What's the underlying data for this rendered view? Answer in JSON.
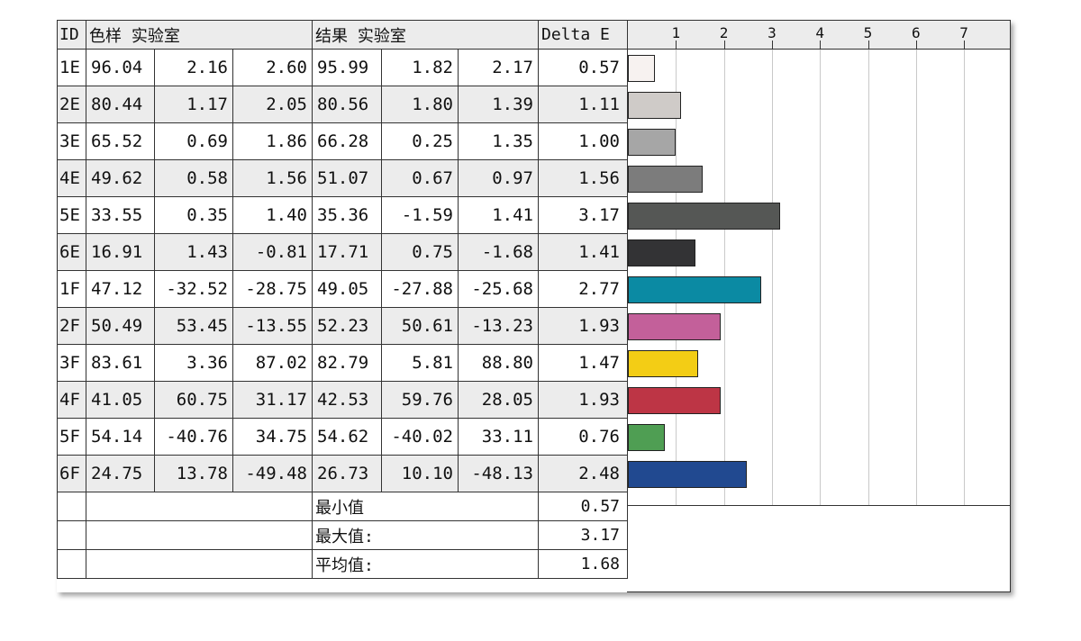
{
  "header": {
    "id": "ID",
    "sample": "色样 实验室",
    "result": "结果 实验室",
    "delta": "Delta E"
  },
  "rows": [
    {
      "id": "1E",
      "s": [
        "96.04",
        "2.16",
        "2.60"
      ],
      "r": [
        "95.99",
        "1.82",
        "2.17"
      ],
      "de": "0.57"
    },
    {
      "id": "2E",
      "s": [
        "80.44",
        "1.17",
        "2.05"
      ],
      "r": [
        "80.56",
        "1.80",
        "1.39"
      ],
      "de": "1.11"
    },
    {
      "id": "3E",
      "s": [
        "65.52",
        "0.69",
        "1.86"
      ],
      "r": [
        "66.28",
        "0.25",
        "1.35"
      ],
      "de": "1.00"
    },
    {
      "id": "4E",
      "s": [
        "49.62",
        "0.58",
        "1.56"
      ],
      "r": [
        "51.07",
        "0.67",
        "0.97"
      ],
      "de": "1.56"
    },
    {
      "id": "5E",
      "s": [
        "33.55",
        "0.35",
        "1.40"
      ],
      "r": [
        "35.36",
        "-1.59",
        "1.41"
      ],
      "de": "3.17"
    },
    {
      "id": "6E",
      "s": [
        "16.91",
        "1.43",
        "-0.81"
      ],
      "r": [
        "17.71",
        "0.75",
        "-1.68"
      ],
      "de": "1.41"
    },
    {
      "id": "1F",
      "s": [
        "47.12",
        "-32.52",
        "-28.75"
      ],
      "r": [
        "49.05",
        "-27.88",
        "-25.68"
      ],
      "de": "2.77"
    },
    {
      "id": "2F",
      "s": [
        "50.49",
        "53.45",
        "-13.55"
      ],
      "r": [
        "52.23",
        "50.61",
        "-13.23"
      ],
      "de": "1.93"
    },
    {
      "id": "3F",
      "s": [
        "83.61",
        "3.36",
        "87.02"
      ],
      "r": [
        "82.79",
        "5.81",
        "88.80"
      ],
      "de": "1.47"
    },
    {
      "id": "4F",
      "s": [
        "41.05",
        "60.75",
        "31.17"
      ],
      "r": [
        "42.53",
        "59.76",
        "28.05"
      ],
      "de": "1.93"
    },
    {
      "id": "5F",
      "s": [
        "54.14",
        "-40.76",
        "34.75"
      ],
      "r": [
        "54.62",
        "-40.02",
        "33.11"
      ],
      "de": "0.76"
    },
    {
      "id": "6F",
      "s": [
        "24.75",
        "13.78",
        "-49.48"
      ],
      "r": [
        "26.73",
        "10.10",
        "-48.13"
      ],
      "de": "2.48"
    }
  ],
  "summary": [
    {
      "label": "最小值",
      "value": "0.57"
    },
    {
      "label": "最大值:",
      "value": "3.17"
    },
    {
      "label": "平均值:",
      "value": "1.68"
    }
  ],
  "chart_data": {
    "type": "bar",
    "orientation": "horizontal",
    "categories": [
      "1E",
      "2E",
      "3E",
      "4E",
      "5E",
      "6E",
      "1F",
      "2F",
      "3F",
      "4F",
      "5F",
      "6F"
    ],
    "values": [
      0.57,
      1.11,
      1.0,
      1.56,
      3.17,
      1.41,
      2.77,
      1.93,
      1.47,
      1.93,
      0.76,
      2.48
    ],
    "colors": [
      "#f7f2f0",
      "#cfcbc8",
      "#a6a6a6",
      "#7c7c7c",
      "#555755",
      "#333335",
      "#0b8aa3",
      "#c3609a",
      "#f3cd15",
      "#bd3545",
      "#4f9e53",
      "#214990"
    ],
    "x_ticks": [
      "1",
      "2",
      "3",
      "4",
      "5",
      "6",
      "7"
    ],
    "xlim": [
      0,
      8
    ],
    "grid": true
  }
}
